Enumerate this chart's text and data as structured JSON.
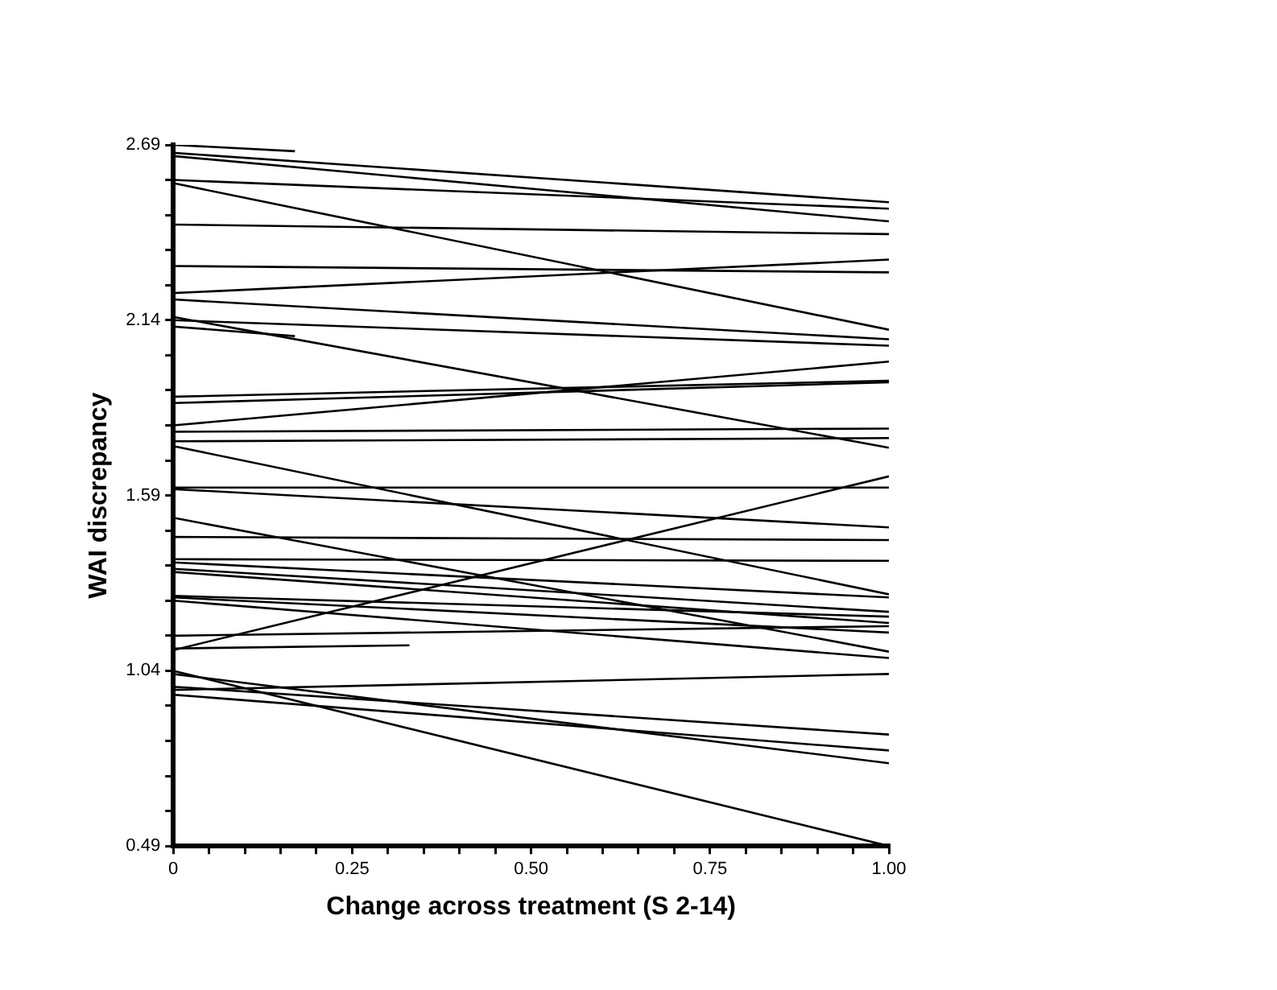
{
  "chart_data": {
    "type": "line",
    "xlabel": "Change across treatment (S 2-14)",
    "ylabel": "WAI discrepancy",
    "xlim": [
      0,
      1
    ],
    "ylim": [
      0.49,
      2.69
    ],
    "xticks": [
      0,
      {
        "value": 0.05,
        "label": null
      },
      {
        "value": 0.1,
        "label": null
      },
      {
        "value": 0.15,
        "label": null
      },
      {
        "value": 0.2,
        "label": null
      },
      0.25,
      {
        "value": 0.3,
        "label": null
      },
      {
        "value": 0.35,
        "label": null
      },
      {
        "value": 0.4,
        "label": null
      },
      {
        "value": 0.45,
        "label": null
      },
      {
        "value": 0.5,
        "label": "0.50"
      },
      {
        "value": 0.55,
        "label": null
      },
      {
        "value": 0.6,
        "label": null
      },
      {
        "value": 0.65,
        "label": null
      },
      {
        "value": 0.7,
        "label": null
      },
      0.75,
      {
        "value": 0.8,
        "label": null
      },
      {
        "value": 0.85,
        "label": null
      },
      {
        "value": 0.9,
        "label": null
      },
      {
        "value": 0.95,
        "label": null
      },
      {
        "value": 1,
        "label": "1.00"
      }
    ],
    "yticks": [
      0.49,
      {
        "value": 0.6,
        "label": null
      },
      {
        "value": 0.71,
        "label": null
      },
      {
        "value": 0.82,
        "label": null
      },
      {
        "value": 0.93,
        "label": null
      },
      1.04,
      {
        "value": 1.15,
        "label": null
      },
      {
        "value": 1.26,
        "label": null
      },
      {
        "value": 1.37,
        "label": null
      },
      {
        "value": 1.48,
        "label": null
      },
      1.59,
      {
        "value": 1.7,
        "label": null
      },
      {
        "value": 1.81,
        "label": null
      },
      {
        "value": 1.92,
        "label": null
      },
      {
        "value": 2.03,
        "label": null
      },
      2.14,
      {
        "value": 2.25,
        "label": null
      },
      {
        "value": 2.36,
        "label": null
      },
      {
        "value": 2.47,
        "label": null
      },
      {
        "value": 2.58,
        "label": null
      },
      2.69
    ],
    "grid": false,
    "legend": false,
    "series": [
      {
        "color": "#000000",
        "x": [
          0,
          0.17
        ],
        "values": [
          2.69,
          2.67
        ]
      },
      {
        "color": "#000000",
        "x": [
          0,
          1
        ],
        "values": [
          2.665,
          2.51
        ]
      },
      {
        "color": "#000000",
        "x": [
          0,
          1
        ],
        "values": [
          2.655,
          2.45
        ]
      },
      {
        "color": "#000000",
        "x": [
          0,
          1
        ],
        "values": [
          2.58,
          2.49
        ]
      },
      {
        "color": "#000000",
        "x": [
          0,
          1
        ],
        "values": [
          2.57,
          2.11
        ]
      },
      {
        "color": "#000000",
        "x": [
          0,
          1
        ],
        "values": [
          2.44,
          2.41
        ]
      },
      {
        "color": "#000000",
        "x": [
          0,
          1
        ],
        "values": [
          2.31,
          2.29
        ]
      },
      {
        "color": "#000000",
        "x": [
          0,
          1
        ],
        "values": [
          2.225,
          2.33
        ]
      },
      {
        "color": "#000000",
        "x": [
          0,
          1
        ],
        "values": [
          2.205,
          2.08
        ]
      },
      {
        "color": "#000000",
        "x": [
          0,
          1
        ],
        "values": [
          2.15,
          1.74
        ]
      },
      {
        "color": "#000000",
        "x": [
          0,
          1
        ],
        "values": [
          2.14,
          2.06
        ]
      },
      {
        "color": "#000000",
        "x": [
          0,
          0.17
        ],
        "values": [
          2.12,
          2.09
        ]
      },
      {
        "color": "#000000",
        "x": [
          0,
          1
        ],
        "values": [
          1.9,
          1.95
        ]
      },
      {
        "color": "#000000",
        "x": [
          0,
          1
        ],
        "values": [
          1.88,
          1.945
        ]
      },
      {
        "color": "#000000",
        "x": [
          0,
          1
        ],
        "values": [
          1.81,
          2.01
        ]
      },
      {
        "color": "#000000",
        "x": [
          0,
          1
        ],
        "values": [
          1.79,
          1.8
        ]
      },
      {
        "color": "#000000",
        "x": [
          0,
          1
        ],
        "values": [
          1.76,
          1.77
        ]
      },
      {
        "color": "#000000",
        "x": [
          0,
          1
        ],
        "values": [
          1.745,
          1.28
        ]
      },
      {
        "color": "#000000",
        "x": [
          0,
          1
        ],
        "values": [
          1.615,
          1.615
        ]
      },
      {
        "color": "#000000",
        "x": [
          0,
          1
        ],
        "values": [
          1.61,
          1.49
        ]
      },
      {
        "color": "#000000",
        "x": [
          0,
          1
        ],
        "values": [
          1.52,
          1.1
        ]
      },
      {
        "color": "#000000",
        "x": [
          0,
          1
        ],
        "values": [
          1.105,
          1.65
        ]
      },
      {
        "color": "#000000",
        "x": [
          0,
          1
        ],
        "values": [
          1.46,
          1.45
        ]
      },
      {
        "color": "#000000",
        "x": [
          0,
          1
        ],
        "values": [
          1.39,
          1.385
        ]
      },
      {
        "color": "#000000",
        "x": [
          0,
          1
        ],
        "values": [
          1.38,
          1.27
        ]
      },
      {
        "color": "#000000",
        "x": [
          0,
          1
        ],
        "values": [
          1.36,
          1.225
        ]
      },
      {
        "color": "#000000",
        "x": [
          0,
          1
        ],
        "values": [
          1.35,
          1.19
        ]
      },
      {
        "color": "#000000",
        "x": [
          0,
          1
        ],
        "values": [
          1.275,
          1.21
        ]
      },
      {
        "color": "#000000",
        "x": [
          0,
          1
        ],
        "values": [
          1.27,
          1.16
        ]
      },
      {
        "color": "#000000",
        "x": [
          0,
          1
        ],
        "values": [
          1.26,
          1.08
        ]
      },
      {
        "color": "#000000",
        "x": [
          0,
          1
        ],
        "values": [
          1.15,
          1.18
        ]
      },
      {
        "color": "#000000",
        "x": [
          0,
          0.33
        ],
        "values": [
          1.11,
          1.12
        ]
      },
      {
        "color": "#000000",
        "x": [
          0,
          1
        ],
        "values": [
          1.04,
          0.49
        ]
      },
      {
        "color": "#000000",
        "x": [
          0,
          1
        ],
        "values": [
          0.98,
          1.03
        ]
      },
      {
        "color": "#000000",
        "x": [
          0,
          1
        ],
        "values": [
          0.965,
          0.79
        ]
      },
      {
        "color": "#000000",
        "x": [
          0,
          1
        ],
        "values": [
          1.03,
          0.75
        ]
      },
      {
        "color": "#000000",
        "x": [
          0,
          1
        ],
        "values": [
          0.99,
          0.84
        ]
      }
    ]
  }
}
